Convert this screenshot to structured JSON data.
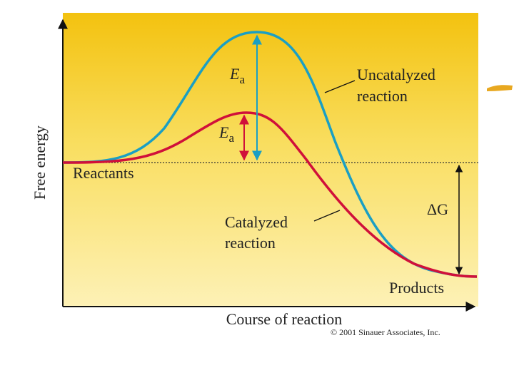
{
  "axes": {
    "y_label": "Free energy",
    "x_label": "Course of reaction"
  },
  "labels": {
    "ea_uncatalyzed": {
      "symbol": "E",
      "subscript": "a"
    },
    "ea_catalyzed": {
      "symbol": "E",
      "subscript": "a"
    },
    "uncatalyzed": [
      "Uncatalyzed",
      "reaction"
    ],
    "catalyzed": [
      "Catalyzed",
      "reaction"
    ],
    "reactants": "Reactants",
    "products": "Products",
    "delta_g": "ΔG"
  },
  "copyright": "© 2001 Sinauer Associates, Inc."
}
